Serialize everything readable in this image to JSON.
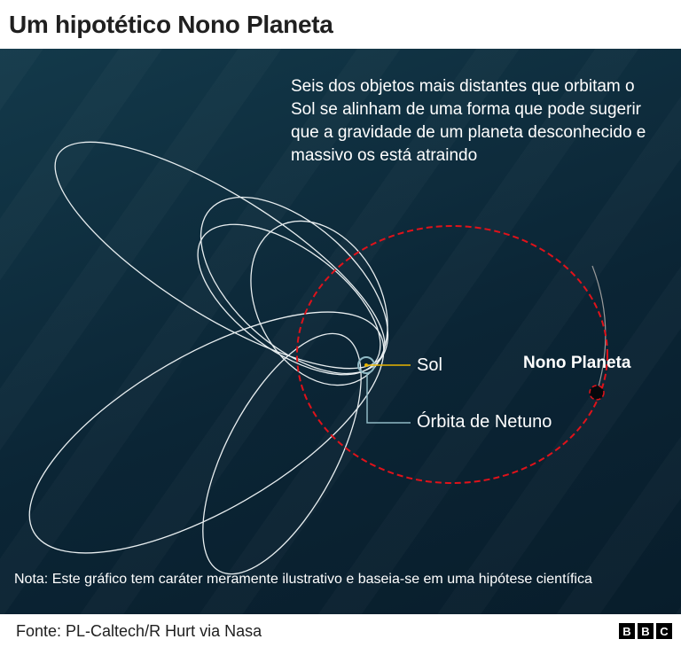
{
  "title": "Um hipotético Nono Planeta",
  "description": "Seis dos objetos mais distantes que orbitam o Sol se alinham de uma forma que pode sugerir que a gravidade de um planeta desconhecido e massivo os está atraindo",
  "labels": {
    "sun": "Sol",
    "neptune_orbit": "Órbita de Netuno",
    "planet_nine": "Nono Planeta"
  },
  "note": "Nota: Este gráfico tem caráter meramente ilustrativo e baseia-se em uma hipótese científica",
  "source": "Fonte: PL-Caltech/R Hurt via Nasa",
  "logo": [
    "B",
    "B",
    "C"
  ],
  "colors": {
    "orbits": "#ffffff",
    "planet_nine_orbit": "#e0121a",
    "sun_leader": "#e8b400",
    "neptune": "#8fb9c4"
  }
}
